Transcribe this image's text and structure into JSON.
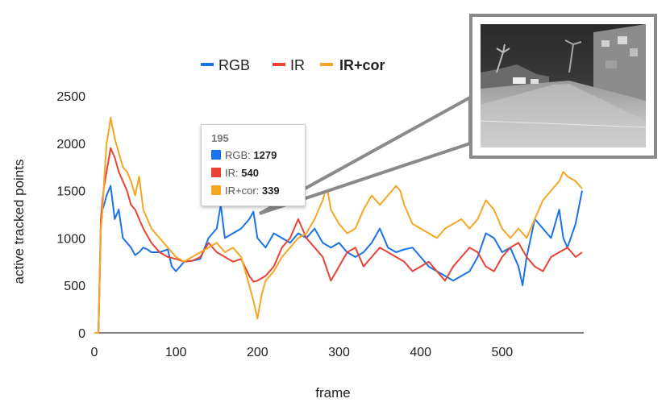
{
  "chart_data": {
    "type": "line",
    "xlabel": "frame",
    "ylabel": "active tracked points",
    "xlim": [
      0,
      600
    ],
    "ylim": [
      0,
      2500
    ],
    "xticks": [
      "0",
      "100",
      "200",
      "300",
      "400",
      "500"
    ],
    "yticks": [
      "0",
      "500",
      "1000",
      "1500",
      "2000",
      "2500"
    ],
    "legend_position": "top",
    "grid": false,
    "series": [
      {
        "name": "RGB",
        "color": "#1a73e8",
        "x": [
          0,
          5,
          8,
          10,
          12,
          15,
          20,
          25,
          30,
          35,
          40,
          45,
          50,
          55,
          60,
          65,
          70,
          80,
          90,
          95,
          100,
          110,
          120,
          130,
          140,
          150,
          155,
          160,
          170,
          180,
          190,
          195,
          200,
          210,
          220,
          230,
          240,
          250,
          260,
          270,
          280,
          290,
          300,
          310,
          320,
          330,
          340,
          350,
          360,
          370,
          380,
          390,
          400,
          410,
          420,
          430,
          440,
          450,
          460,
          470,
          480,
          490,
          500,
          510,
          520,
          525,
          530,
          540,
          550,
          560,
          570,
          575,
          580,
          590,
          598
        ],
        "y": [
          0,
          0,
          1100,
          1300,
          1350,
          1450,
          1550,
          1200,
          1300,
          1000,
          950,
          900,
          820,
          850,
          900,
          880,
          850,
          850,
          880,
          700,
          650,
          750,
          760,
          780,
          1000,
          1100,
          1350,
          1000,
          1050,
          1100,
          1200,
          1279,
          1000,
          900,
          1050,
          1000,
          950,
          1050,
          1000,
          1100,
          950,
          900,
          950,
          850,
          800,
          850,
          950,
          1100,
          900,
          850,
          880,
          900,
          800,
          700,
          650,
          600,
          550,
          600,
          650,
          800,
          1050,
          1000,
          850,
          900,
          700,
          500,
          800,
          1200,
          1100,
          1000,
          1300,
          1000,
          900,
          1150,
          1500
        ]
      },
      {
        "name": "IR",
        "color": "#ea4335",
        "x": [
          0,
          5,
          8,
          10,
          12,
          15,
          20,
          25,
          30,
          35,
          40,
          45,
          50,
          60,
          70,
          80,
          90,
          100,
          110,
          120,
          130,
          140,
          150,
          160,
          170,
          180,
          190,
          195,
          200,
          210,
          220,
          230,
          240,
          245,
          250,
          260,
          270,
          280,
          290,
          300,
          310,
          320,
          330,
          340,
          350,
          360,
          370,
          380,
          390,
          400,
          410,
          420,
          430,
          440,
          450,
          460,
          470,
          480,
          490,
          500,
          510,
          520,
          530,
          540,
          550,
          560,
          570,
          580,
          590,
          598
        ],
        "y": [
          0,
          0,
          1200,
          1400,
          1550,
          1700,
          1950,
          1850,
          1700,
          1600,
          1500,
          1350,
          1300,
          1100,
          950,
          850,
          800,
          780,
          750,
          760,
          800,
          950,
          850,
          800,
          750,
          780,
          600,
          540,
          550,
          600,
          700,
          900,
          1000,
          1100,
          1200,
          1000,
          900,
          800,
          550,
          700,
          850,
          900,
          700,
          800,
          900,
          850,
          800,
          750,
          650,
          700,
          750,
          650,
          550,
          700,
          800,
          900,
          850,
          700,
          650,
          800,
          900,
          950,
          800,
          700,
          650,
          800,
          850,
          900,
          800,
          850
        ]
      },
      {
        "name": "IR+cor",
        "color": "#f6a623",
        "x": [
          0,
          5,
          8,
          10,
          12,
          15,
          18,
          20,
          25,
          30,
          35,
          40,
          45,
          50,
          55,
          60,
          65,
          70,
          80,
          90,
          100,
          110,
          120,
          130,
          140,
          150,
          160,
          170,
          180,
          190,
          195,
          200,
          205,
          210,
          220,
          230,
          240,
          250,
          260,
          270,
          280,
          285,
          290,
          300,
          310,
          320,
          330,
          340,
          350,
          360,
          370,
          375,
          380,
          390,
          400,
          410,
          420,
          430,
          440,
          450,
          460,
          470,
          480,
          490,
          500,
          510,
          520,
          530,
          540,
          550,
          560,
          570,
          575,
          580,
          590,
          598
        ],
        "y": [
          0,
          0,
          1100,
          1300,
          1600,
          2000,
          2150,
          2270,
          2050,
          1900,
          1750,
          1700,
          1600,
          1450,
          1650,
          1300,
          1200,
          1100,
          1000,
          900,
          800,
          750,
          800,
          850,
          900,
          950,
          850,
          900,
          800,
          500,
          339,
          150,
          400,
          550,
          650,
          800,
          900,
          1000,
          1050,
          1200,
          1400,
          1550,
          1300,
          1150,
          1050,
          1100,
          1300,
          1450,
          1350,
          1450,
          1550,
          1500,
          1350,
          1150,
          1100,
          1050,
          1000,
          1100,
          1150,
          1200,
          1100,
          1200,
          1400,
          1300,
          1100,
          1000,
          1100,
          1000,
          1200,
          1400,
          1500,
          1600,
          1700,
          1650,
          1600,
          1520
        ]
      }
    ],
    "tooltip": {
      "frame": "195",
      "rows": [
        {
          "label": "RGB",
          "value": "1279",
          "color": "#1a73e8"
        },
        {
          "label": "IR",
          "value": "540",
          "color": "#ea4335"
        },
        {
          "label": "IR+cor",
          "value": "339",
          "color": "#f6a623"
        }
      ]
    }
  },
  "inset": {
    "description_icon": "thermal-street-image"
  }
}
